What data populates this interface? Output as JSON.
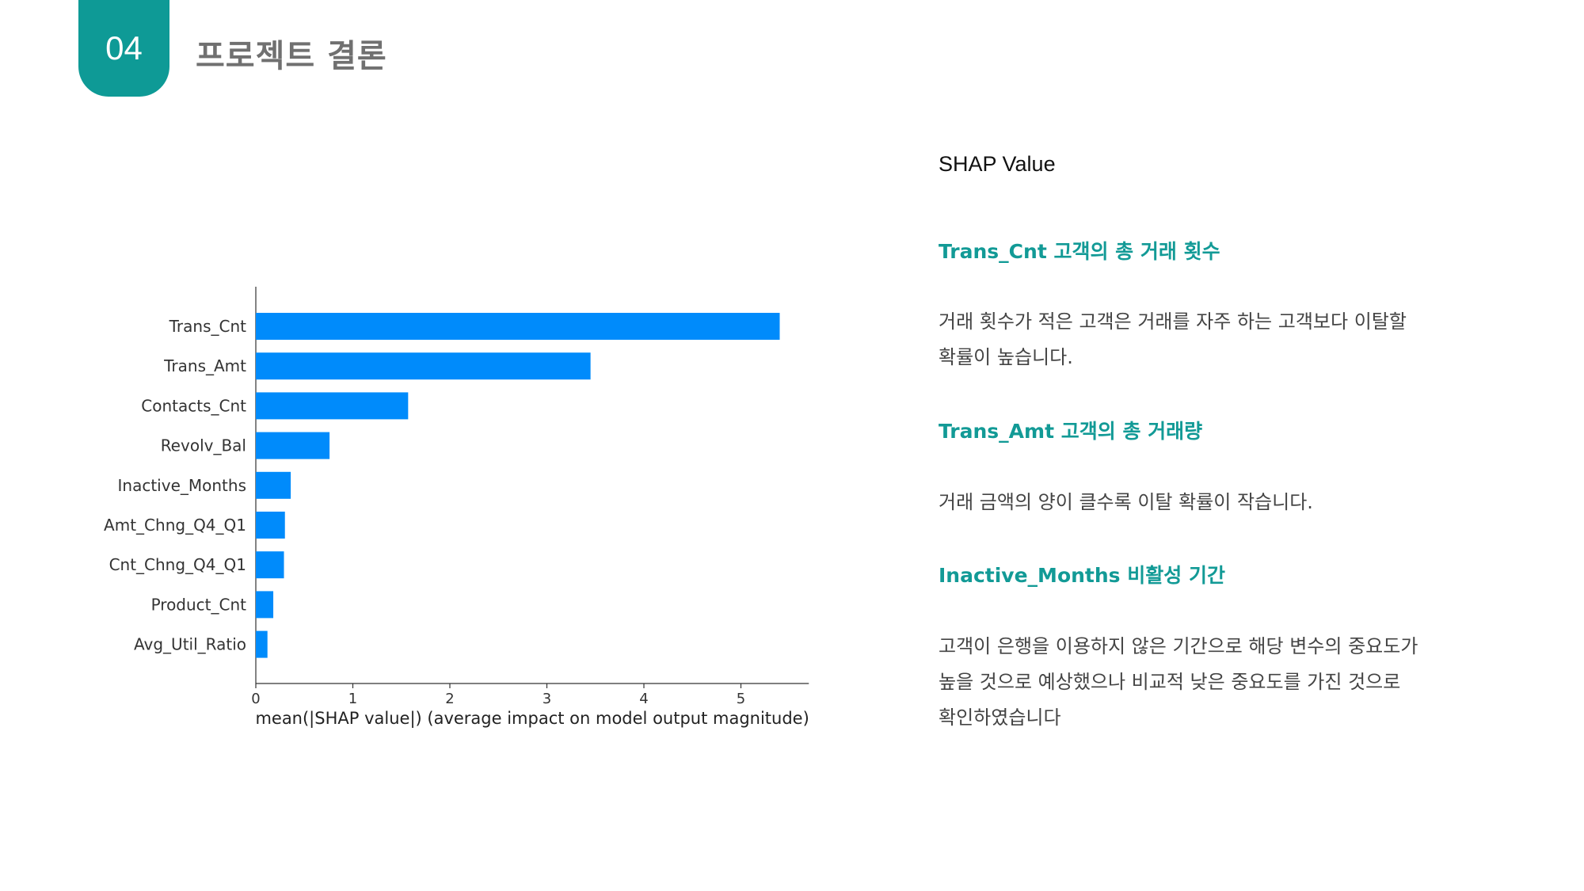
{
  "header": {
    "section_number": "04",
    "title": "프로젝트 결론"
  },
  "chart_data": {
    "type": "bar",
    "orientation": "horizontal",
    "categories": [
      "Trans_Cnt",
      "Trans_Amt",
      "Contacts_Cnt",
      "Revolv_Bal",
      "Inactive_Months",
      "Amt_Chng_Q4_Q1",
      "Cnt_Chng_Q4_Q1",
      "Product_Cnt",
      "Avg_Util_Ratio"
    ],
    "values": [
      5.4,
      3.45,
      1.57,
      0.76,
      0.36,
      0.3,
      0.29,
      0.18,
      0.12
    ],
    "xticks": [
      "0",
      "1",
      "2",
      "3",
      "4",
      "5"
    ],
    "xlim": [
      0,
      5.7
    ],
    "xlabel": "mean(|SHAP value|) (average impact on model output magnitude)",
    "ylabel": "",
    "title": "",
    "bar_color": "#008bfb",
    "grid": false
  },
  "panel": {
    "heading": "SHAP Value",
    "sections": [
      {
        "title": "Trans_Cnt 고객의 총 거래 횟수",
        "body": [
          "거래 횟수가 적은 고객은 거래를 자주 하는 고객보다 이탈할",
          "확률이 높습니다."
        ]
      },
      {
        "title": "Trans_Amt 고객의 총 거래량",
        "body": [
          "거래 금액의 양이 클수록 이탈 확률이 작습니다."
        ]
      },
      {
        "title": "Inactive_Months  비활성 기간",
        "body": [
          "고객이 은행을 이용하지 않은 기간으로 해당 변수의 중요도가",
          "높을 것으로 예상했으나 비교적 낮은 중요도를 가진 것으로",
          "확인하였습니다"
        ]
      }
    ]
  },
  "colors": {
    "accent": "#0e9a96",
    "title_gray": "#707070"
  }
}
